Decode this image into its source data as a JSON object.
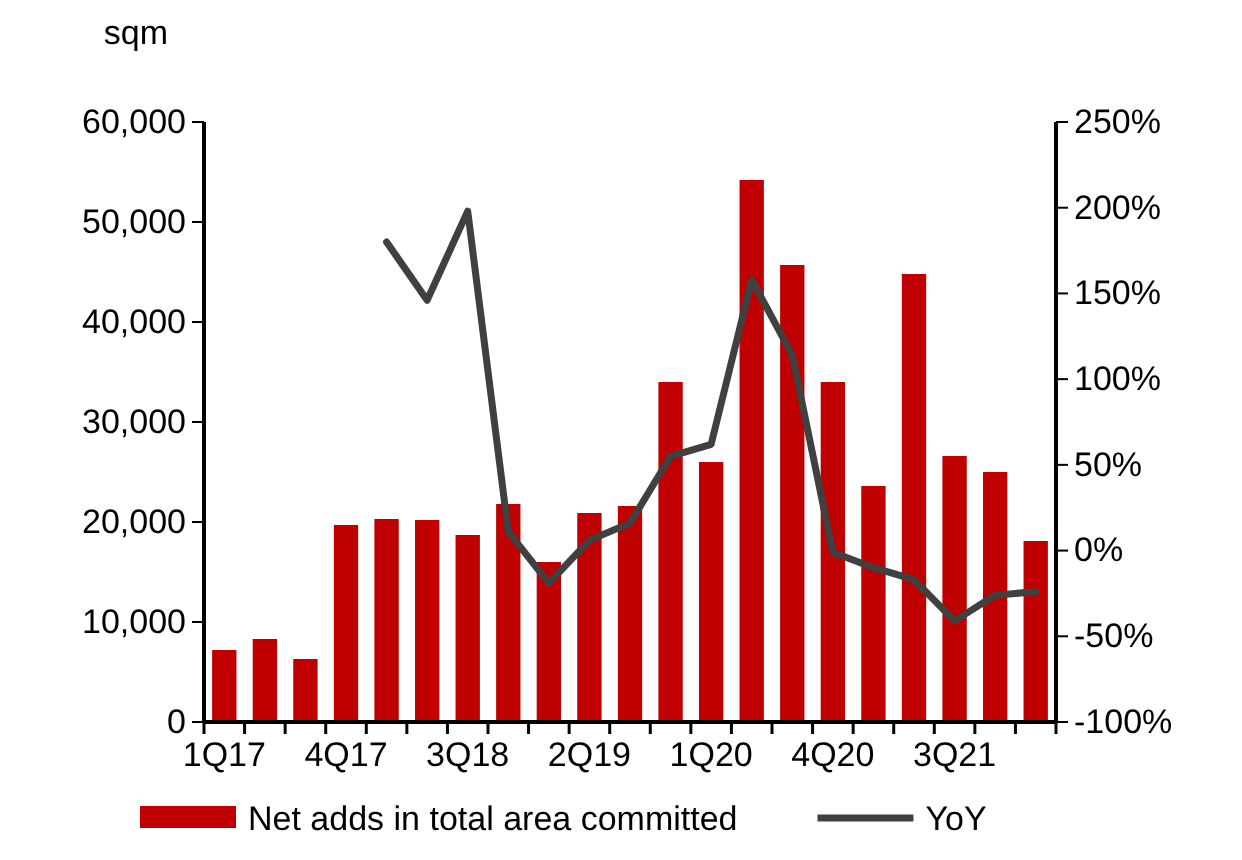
{
  "chart_data": {
    "type": "bar",
    "ylabel": "sqm",
    "categories": [
      "1Q17",
      null,
      null,
      "4Q17",
      null,
      null,
      "3Q18",
      null,
      null,
      "2Q19",
      null,
      null,
      "1Q20",
      null,
      null,
      "4Q20",
      null,
      null,
      "3Q21",
      null,
      null
    ],
    "series": [
      {
        "name": "Net adds in total area committed",
        "color": "#c00000",
        "values": [
          7200,
          8300,
          6300,
          19700,
          20300,
          20200,
          18700,
          21800,
          16000,
          20900,
          21600,
          34000,
          26000,
          54200,
          45700,
          34000,
          23600,
          44800,
          26600,
          25000,
          18100
        ]
      },
      {
        "name": "YoY",
        "type": "line",
        "axis": "y2",
        "color": "#404040",
        "values": [
          null,
          null,
          null,
          null,
          180,
          146,
          198,
          11,
          -19,
          6,
          16,
          55,
          62,
          158,
          114,
          -1,
          -10,
          -17,
          -41,
          -26,
          -24
        ]
      }
    ],
    "ylim": [
      0,
      60000
    ],
    "yticks": [
      {
        "value": 0,
        "label": "0"
      },
      {
        "value": 10000,
        "label": "10,000"
      },
      {
        "value": 20000,
        "label": "20,000"
      },
      {
        "value": 30000,
        "label": "30,000"
      },
      {
        "value": 40000,
        "label": "40,000"
      },
      {
        "value": 50000,
        "label": "50,000"
      },
      {
        "value": 60000,
        "label": "60,000"
      }
    ],
    "y2lim": [
      -100,
      250
    ],
    "y2ticks": [
      {
        "value": -100,
        "label": "-100%"
      },
      {
        "value": -50,
        "label": "-50%"
      },
      {
        "value": 0,
        "label": "0%"
      },
      {
        "value": 50,
        "label": "50%"
      },
      {
        "value": 100,
        "label": "100%"
      },
      {
        "value": 150,
        "label": "150%"
      },
      {
        "value": 200,
        "label": "200%"
      },
      {
        "value": 250,
        "label": "250%"
      }
    ],
    "grid": false,
    "legend": "bottom",
    "marker": "none",
    "line_style": "solid"
  }
}
